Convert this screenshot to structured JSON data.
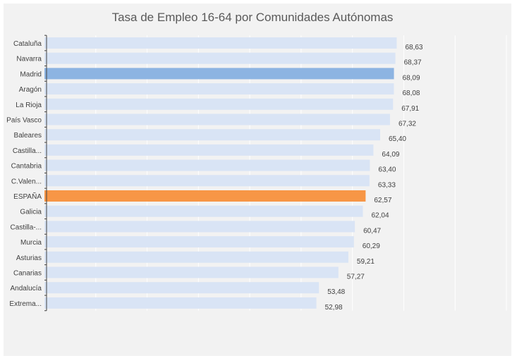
{
  "chart_data": {
    "type": "bar",
    "orientation": "horizontal",
    "title": "Tasa de Empleo 16-64 por Comunidades Autónomas",
    "categories": [
      "Cataluña",
      "Navarra",
      "Madrid",
      "Aragón",
      "La Rioja",
      "País Vasco",
      "Baleares",
      "Castilla...",
      "Cantabria",
      "C.Valen...",
      "ESPAÑA",
      "Galicia",
      "Castilla-...",
      "Murcia",
      "Asturias",
      "Canarias",
      "Andalucía",
      "Extrema..."
    ],
    "values": [
      68.63,
      68.37,
      68.09,
      68.08,
      67.91,
      67.32,
      65.4,
      64.09,
      63.4,
      63.33,
      62.57,
      62.04,
      60.47,
      60.29,
      59.21,
      57.27,
      53.48,
      52.98
    ],
    "value_labels": [
      "68,63",
      "68,37",
      "68,09",
      "68,08",
      "67,91",
      "67,32",
      "65,40",
      "64,09",
      "63,40",
      "63,33",
      "62,57",
      "62,04",
      "60,47",
      "60,29",
      "59,21",
      "57,27",
      "53,48",
      "52,98"
    ],
    "xlim": [
      0,
      90
    ],
    "colors": {
      "default": "#d9e4f5",
      "highlight_madrid": "#8db4e2",
      "highlight_espana": "#f79646"
    },
    "highlight": {
      "Madrid": "highlight_madrid",
      "ESPAÑA": "highlight_espana"
    },
    "grid": true
  }
}
